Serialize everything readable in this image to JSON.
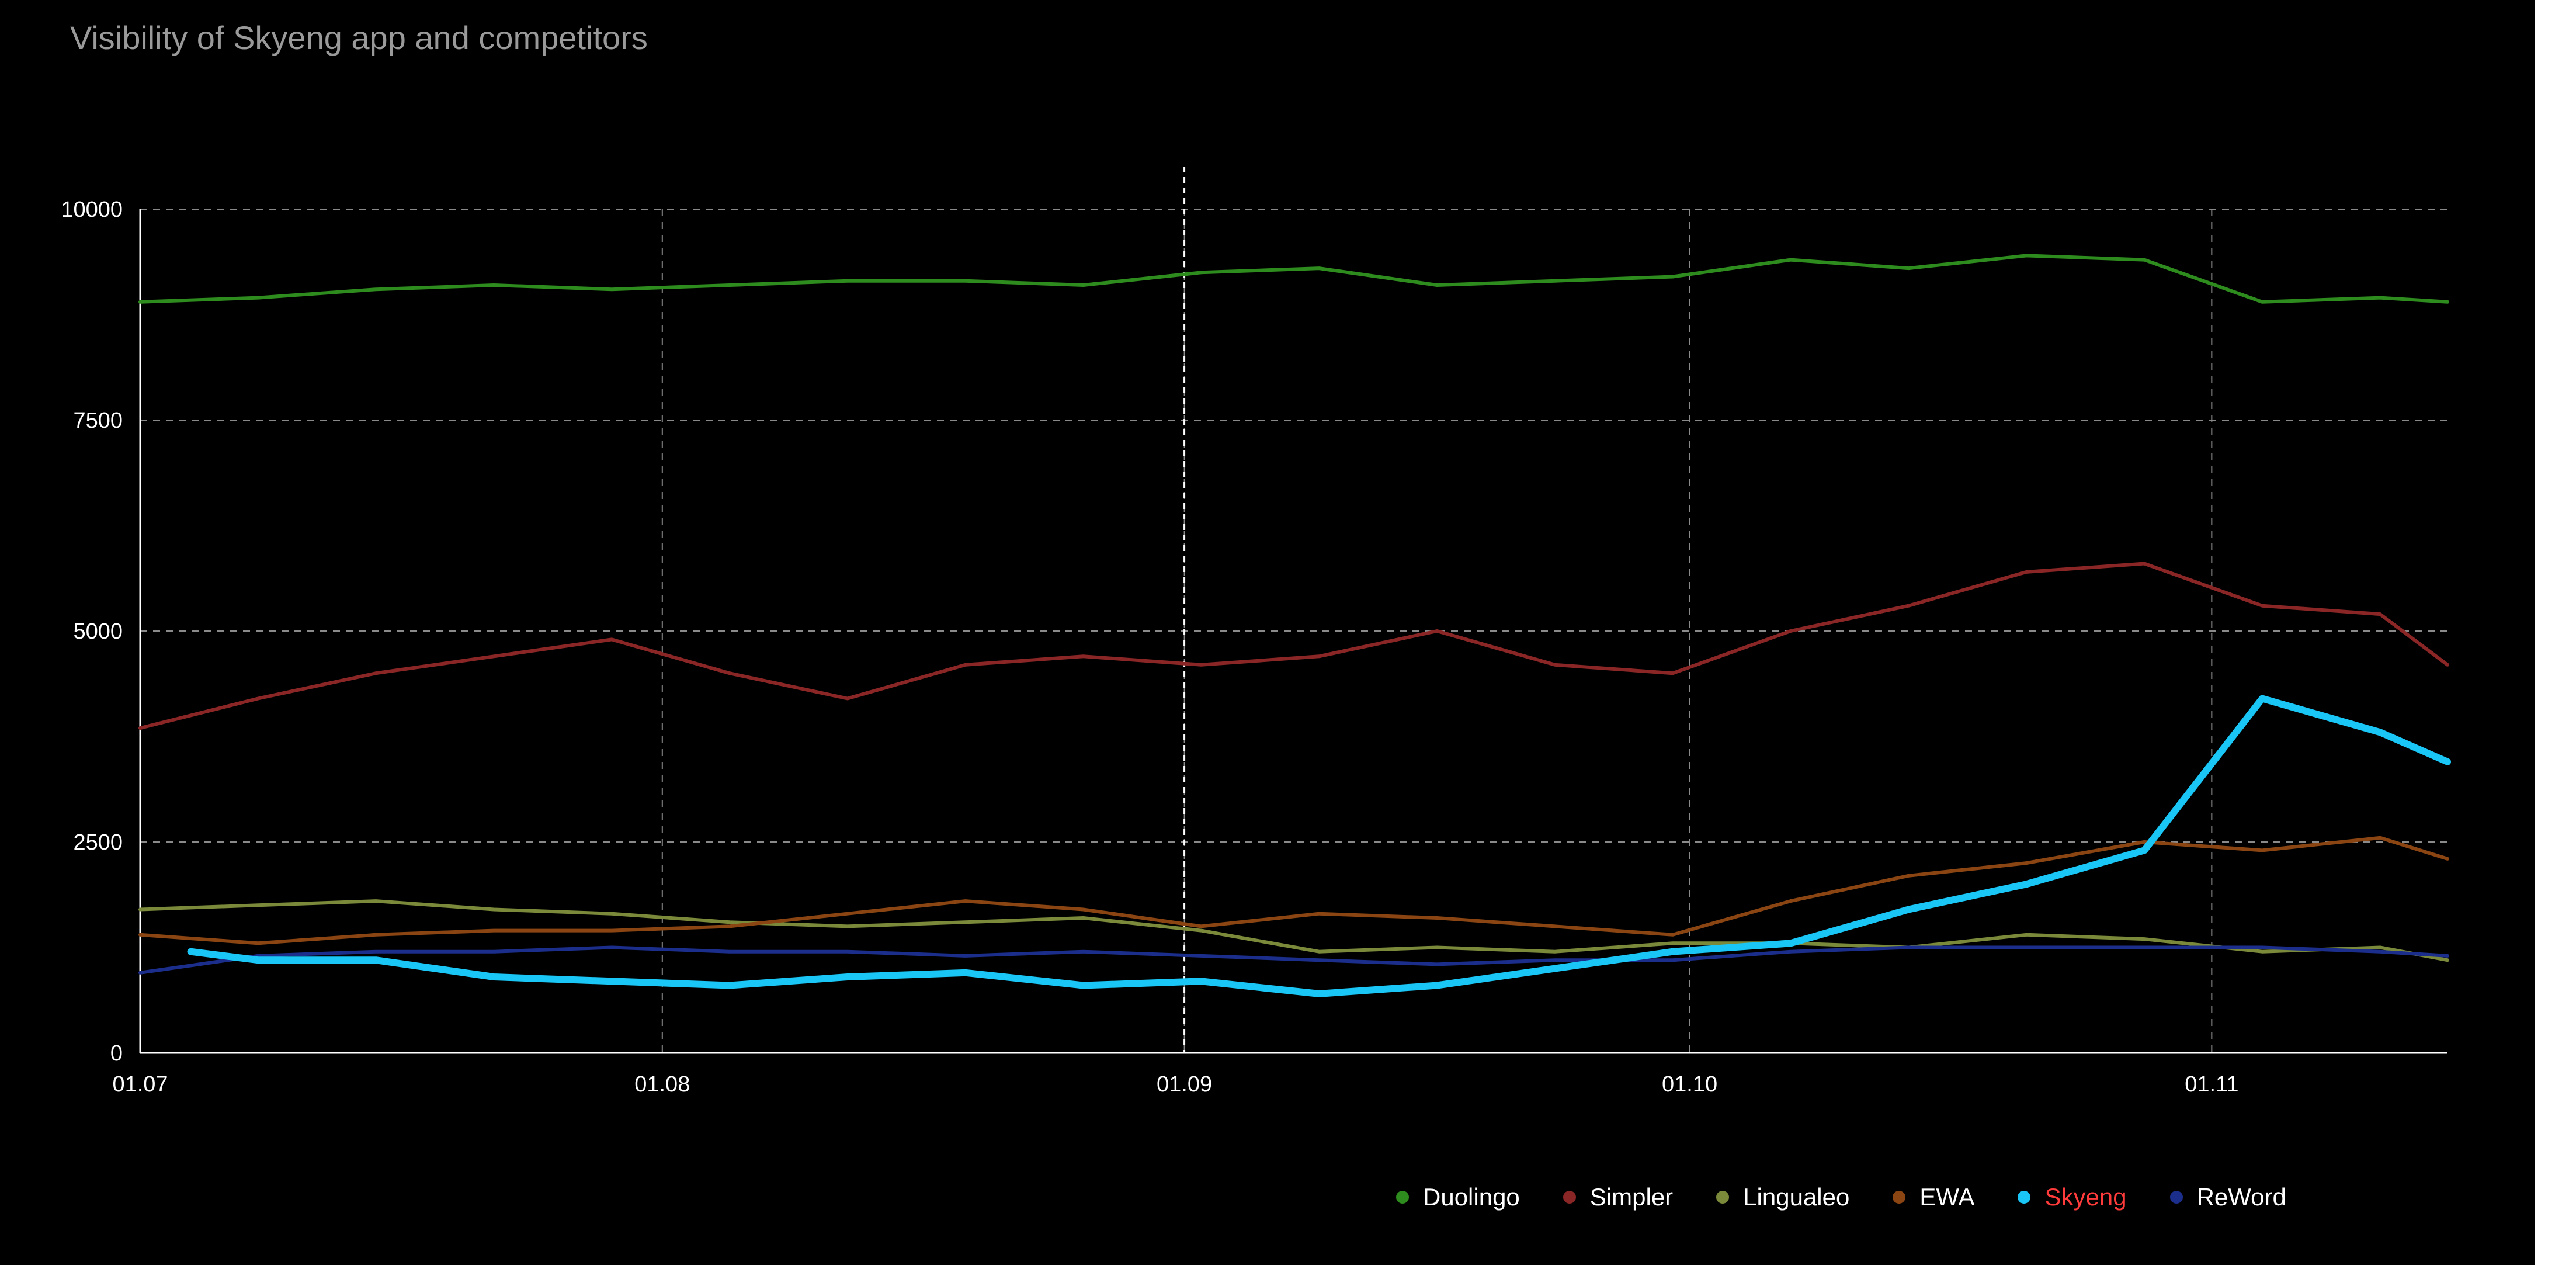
{
  "chart_data": {
    "type": "line",
    "title": "Visibility of Skyeng app and competitors",
    "xlabel": "",
    "ylabel": "",
    "x_range": [
      "01.07",
      "15.11"
    ],
    "ylim": [
      0,
      10000
    ],
    "x_ticks": [
      "01.07",
      "01.08",
      "01.09",
      "01.10",
      "01.11"
    ],
    "y_ticks": [
      0,
      2500,
      5000,
      7500,
      10000
    ],
    "grid": "dashed",
    "marker_line_date": "01.09",
    "legend_position": "bottom-right",
    "sample_dates": [
      "01.07",
      "08.07",
      "15.07",
      "22.07",
      "29.07",
      "05.08",
      "12.08",
      "19.08",
      "26.08",
      "02.09",
      "09.09",
      "16.09",
      "23.09",
      "30.09",
      "07.10",
      "14.10",
      "21.10",
      "28.10",
      "04.11",
      "11.11",
      "15.11"
    ],
    "series": [
      {
        "name": "Duolingo",
        "color": "#2e8b1e",
        "stroke_width": 6,
        "values": [
          8900,
          8950,
          9050,
          9100,
          9050,
          9100,
          9150,
          9150,
          9100,
          9250,
          9300,
          9100,
          9150,
          9200,
          9400,
          9300,
          9450,
          9400,
          8900,
          8950,
          8900
        ]
      },
      {
        "name": "Simpler",
        "color": "#8b2626",
        "stroke_width": 6,
        "values": [
          3850,
          4200,
          4500,
          4700,
          4900,
          4500,
          4200,
          4600,
          4700,
          4600,
          4700,
          5000,
          4600,
          4500,
          5000,
          5300,
          5700,
          5800,
          5300,
          5200,
          4600
        ]
      },
      {
        "name": "Lingualeo",
        "color": "#7a8a3a",
        "stroke_width": 6,
        "values": [
          1700,
          1750,
          1800,
          1700,
          1650,
          1550,
          1500,
          1550,
          1600,
          1450,
          1200,
          1250,
          1200,
          1300,
          1300,
          1250,
          1400,
          1350,
          1200,
          1250,
          1100
        ]
      },
      {
        "name": "EWA",
        "color": "#8b4513",
        "stroke_width": 6,
        "values": [
          1400,
          1300,
          1400,
          1450,
          1450,
          1500,
          1650,
          1800,
          1700,
          1500,
          1650,
          1600,
          1500,
          1400,
          1800,
          2100,
          2250,
          2500,
          2400,
          2550,
          2300
        ]
      },
      {
        "name": "Skyeng",
        "color": "#19c6f5",
        "stroke_width": 12,
        "label_color": "#ff3b3b",
        "x_start": "04.07",
        "values": [
          1200,
          1100,
          1100,
          900,
          850,
          800,
          900,
          950,
          800,
          850,
          700,
          800,
          1000,
          1200,
          1300,
          1700,
          2000,
          2400,
          4200,
          3800,
          3450
        ]
      },
      {
        "name": "ReWord",
        "color": "#1c2e8c",
        "stroke_width": 6,
        "values": [
          950,
          1150,
          1200,
          1200,
          1250,
          1200,
          1200,
          1150,
          1200,
          1150,
          1100,
          1050,
          1100,
          1100,
          1200,
          1250,
          1250,
          1250,
          1250,
          1200,
          1150
        ]
      }
    ]
  }
}
